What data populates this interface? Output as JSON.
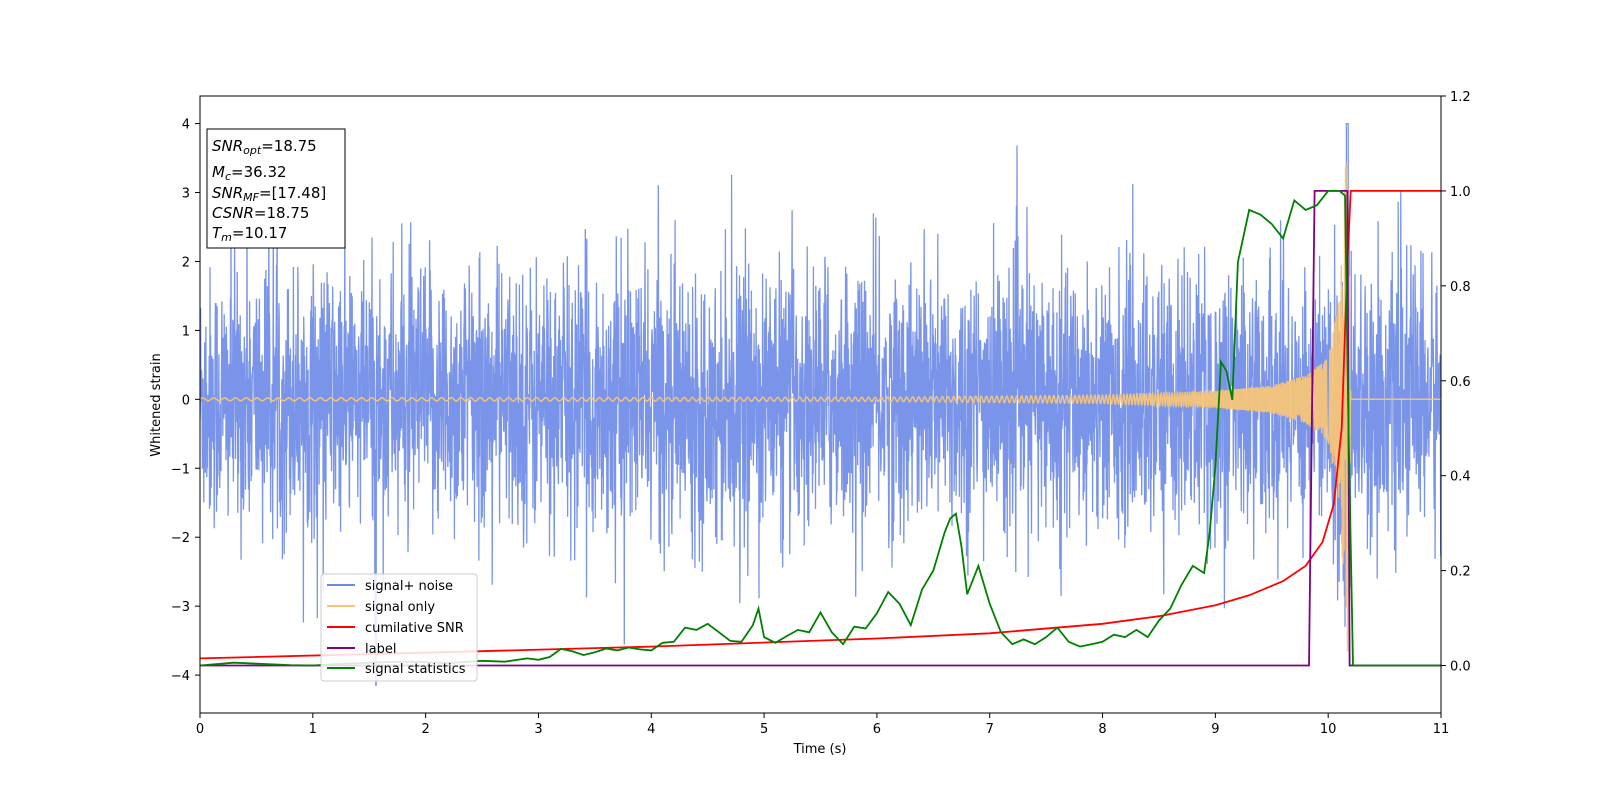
{
  "chart_data": {
    "type": "line",
    "xlabel": "Time (s)",
    "ylabel": "Whitened strain",
    "xlim": [
      0,
      11
    ],
    "ylim_left": [
      -4.55,
      4.4
    ],
    "ylim_right": [
      -0.1,
      1.2
    ],
    "x_ticks": [
      0,
      1,
      2,
      3,
      4,
      5,
      6,
      7,
      8,
      9,
      10,
      11
    ],
    "y_ticks_left": [
      -4,
      -3,
      -2,
      -1,
      0,
      1,
      2,
      3,
      4
    ],
    "y_ticks_right": [
      "0.0",
      "0.2",
      "0.4",
      "0.6",
      "0.8",
      "1.0",
      "1.2"
    ],
    "legend_position": "lower-left",
    "series": [
      {
        "name": "signal+ noise",
        "color": "#6a88e6",
        "axis": "left",
        "description_values": {
          "typical_range": [
            -2.5,
            2.5
          ],
          "max_spike": 4.0,
          "min_spike": -4.15
        }
      },
      {
        "name": "signal only",
        "color": "#f5c47a",
        "axis": "left",
        "x": [
          0,
          6,
          8,
          9,
          9.5,
          9.8,
          10.0,
          10.1,
          10.17,
          10.2,
          11
        ],
        "amplitude": [
          0.02,
          0.03,
          0.06,
          0.12,
          0.2,
          0.35,
          0.6,
          1.5,
          3.9,
          0.0,
          0.0
        ]
      },
      {
        "name": "cumilative SNR",
        "color": "#ff0000",
        "axis": "right",
        "x": [
          0,
          2,
          4,
          6,
          7,
          8,
          8.5,
          9,
          9.3,
          9.6,
          9.8,
          9.95,
          10.05,
          10.12,
          10.17,
          10.2,
          11
        ],
        "y": [
          0.015,
          0.027,
          0.04,
          0.057,
          0.068,
          0.088,
          0.104,
          0.127,
          0.148,
          0.178,
          0.21,
          0.26,
          0.34,
          0.5,
          0.85,
          1.0,
          1.0
        ]
      },
      {
        "name": "label",
        "color": "#800080",
        "axis": "right",
        "x": [
          0,
          9.83,
          9.88,
          10.17,
          10.19,
          11
        ],
        "y": [
          0.0,
          0.0,
          1.0,
          1.0,
          0.0,
          0.0
        ]
      },
      {
        "name": "signal statistics",
        "color": "#008000",
        "axis": "right",
        "x": [
          0,
          0.3,
          0.5,
          0.8,
          1.0,
          1.2,
          1.5,
          1.8,
          2.0,
          2.2,
          2.5,
          2.7,
          2.9,
          3.0,
          3.1,
          3.2,
          3.3,
          3.4,
          3.5,
          3.6,
          3.7,
          3.8,
          3.9,
          4.0,
          4.1,
          4.2,
          4.3,
          4.4,
          4.5,
          4.6,
          4.7,
          4.8,
          4.9,
          4.95,
          5.0,
          5.1,
          5.2,
          5.3,
          5.4,
          5.5,
          5.6,
          5.7,
          5.8,
          5.9,
          6.0,
          6.1,
          6.2,
          6.3,
          6.4,
          6.5,
          6.6,
          6.65,
          6.7,
          6.75,
          6.8,
          6.9,
          7.0,
          7.1,
          7.2,
          7.3,
          7.4,
          7.5,
          7.6,
          7.7,
          7.8,
          7.9,
          8.0,
          8.1,
          8.2,
          8.3,
          8.4,
          8.5,
          8.6,
          8.7,
          8.8,
          8.9,
          8.95,
          9.0,
          9.05,
          9.1,
          9.15,
          9.2,
          9.3,
          9.4,
          9.5,
          9.6,
          9.7,
          9.8,
          9.9,
          10.0,
          10.1,
          10.15,
          10.18,
          10.22,
          10.3,
          11
        ],
        "y": [
          0.0,
          0.006,
          0.004,
          0.001,
          0.0,
          0.003,
          0.006,
          0.008,
          0.007,
          0.005,
          0.01,
          0.008,
          0.015,
          0.012,
          0.018,
          0.035,
          0.03,
          0.022,
          0.028,
          0.036,
          0.032,
          0.038,
          0.034,
          0.032,
          0.048,
          0.05,
          0.08,
          0.075,
          0.088,
          0.07,
          0.052,
          0.05,
          0.085,
          0.12,
          0.06,
          0.048,
          0.062,
          0.075,
          0.07,
          0.112,
          0.07,
          0.045,
          0.082,
          0.078,
          0.11,
          0.155,
          0.13,
          0.085,
          0.16,
          0.2,
          0.28,
          0.31,
          0.32,
          0.25,
          0.15,
          0.21,
          0.13,
          0.07,
          0.045,
          0.055,
          0.045,
          0.06,
          0.08,
          0.05,
          0.04,
          0.045,
          0.05,
          0.065,
          0.06,
          0.075,
          0.06,
          0.095,
          0.12,
          0.17,
          0.21,
          0.195,
          0.28,
          0.42,
          0.64,
          0.62,
          0.56,
          0.85,
          0.96,
          0.95,
          0.93,
          0.9,
          0.98,
          0.96,
          0.97,
          1.0,
          1.0,
          0.99,
          0.5,
          0.0,
          0.0,
          0.0
        ]
      }
    ],
    "annotations": {
      "snr_opt": "=18.75",
      "mc": "=36.32",
      "snr_mf": "=[17.48]",
      "csnr": "=18.75",
      "tm": "=10.17"
    }
  },
  "legend": {
    "signal_noise": "signal+ noise",
    "signal_only": "signal only",
    "cum_snr": "cumilative SNR",
    "label": "label",
    "signal_statistics": "signal statistics"
  },
  "info": {
    "snr_opt_main": "SNR",
    "snr_opt_sub": "opt",
    "snr_opt_val": "=18.75",
    "mc_main": "M",
    "mc_sub": "c",
    "mc_val": "=36.32",
    "snr_mf_main": "SNR",
    "snr_mf_sub": "MF",
    "snr_mf_val": "=[17.48]",
    "csnr_main": "CSNR",
    "csnr_val": "=18.75",
    "tm_main": "T",
    "tm_sub": "m",
    "tm_val": "=10.17"
  }
}
